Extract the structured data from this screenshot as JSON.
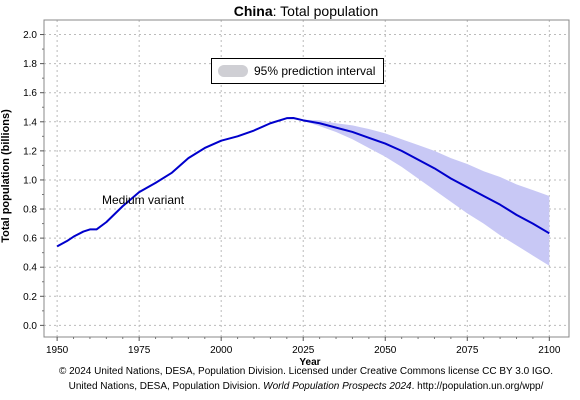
{
  "chart_data": {
    "type": "line",
    "title_country": "China",
    "title_rest": ": Total population",
    "xlabel": "Year",
    "ylabel": "Total population (billions)",
    "xlim": [
      1946,
      2106
    ],
    "ylim": [
      -0.08,
      2.1
    ],
    "x_ticks": [
      1950,
      1975,
      2000,
      2025,
      2050,
      2075,
      2100
    ],
    "y_ticks": [
      0.0,
      0.2,
      0.4,
      0.6,
      0.8,
      1.0,
      1.2,
      1.4,
      1.6,
      1.8,
      2.0
    ],
    "y_tick_labels": [
      "0.0",
      "0.2",
      "0.4",
      "0.6",
      "0.8",
      "1.0",
      "1.2",
      "1.4",
      "1.6",
      "1.8",
      "2.0"
    ],
    "grid": true,
    "series": [
      {
        "name": "Medium variant",
        "color": "#0000cc",
        "points": [
          [
            1950,
            0.543
          ],
          [
            1953,
            0.58
          ],
          [
            1955,
            0.61
          ],
          [
            1958,
            0.645
          ],
          [
            1960,
            0.66
          ],
          [
            1962,
            0.66
          ],
          [
            1965,
            0.71
          ],
          [
            1970,
            0.82
          ],
          [
            1975,
            0.916
          ],
          [
            1980,
            0.98
          ],
          [
            1985,
            1.05
          ],
          [
            1990,
            1.15
          ],
          [
            1995,
            1.22
          ],
          [
            2000,
            1.27
          ],
          [
            2005,
            1.3
          ],
          [
            2010,
            1.34
          ],
          [
            2015,
            1.39
          ],
          [
            2020,
            1.425
          ],
          [
            2022,
            1.426
          ],
          [
            2025,
            1.41
          ],
          [
            2030,
            1.39
          ],
          [
            2035,
            1.36
          ],
          [
            2040,
            1.33
          ],
          [
            2045,
            1.29
          ],
          [
            2050,
            1.25
          ],
          [
            2055,
            1.2
          ],
          [
            2060,
            1.14
          ],
          [
            2065,
            1.08
          ],
          [
            2070,
            1.01
          ],
          [
            2075,
            0.95
          ],
          [
            2080,
            0.89
          ],
          [
            2085,
            0.83
          ],
          [
            2090,
            0.76
          ],
          [
            2095,
            0.7
          ],
          [
            2100,
            0.633
          ]
        ]
      }
    ],
    "prediction_interval": {
      "name": "95% prediction interval",
      "color": "#c8c8f5",
      "lower": [
        [
          2024,
          1.414
        ],
        [
          2030,
          1.37
        ],
        [
          2035,
          1.33
        ],
        [
          2040,
          1.28
        ],
        [
          2045,
          1.22
        ],
        [
          2050,
          1.16
        ],
        [
          2055,
          1.09
        ],
        [
          2060,
          1.01
        ],
        [
          2065,
          0.93
        ],
        [
          2070,
          0.85
        ],
        [
          2075,
          0.77
        ],
        [
          2080,
          0.7
        ],
        [
          2085,
          0.62
        ],
        [
          2090,
          0.55
        ],
        [
          2095,
          0.48
        ],
        [
          2100,
          0.41
        ]
      ],
      "upper": [
        [
          2024,
          1.416
        ],
        [
          2030,
          1.41
        ],
        [
          2035,
          1.39
        ],
        [
          2040,
          1.375
        ],
        [
          2045,
          1.35
        ],
        [
          2050,
          1.32
        ],
        [
          2055,
          1.28
        ],
        [
          2060,
          1.24
        ],
        [
          2065,
          1.2
        ],
        [
          2070,
          1.15
        ],
        [
          2075,
          1.11
        ],
        [
          2080,
          1.06
        ],
        [
          2085,
          1.02
        ],
        [
          2090,
          0.97
        ],
        [
          2095,
          0.93
        ],
        [
          2100,
          0.89
        ]
      ]
    },
    "legend_position": "top-center",
    "annotation": "Medium variant"
  },
  "credits": {
    "line1": "© 2024 United Nations, DESA, Population Division. Licensed under Creative Commons license CC BY 3.0 IGO.",
    "line2_prefix": "United Nations, DESA, Population Division. ",
    "line2_italic": "World Population Prospects 2024",
    "line2_suffix": ". http://population.un.org/wpp/"
  }
}
